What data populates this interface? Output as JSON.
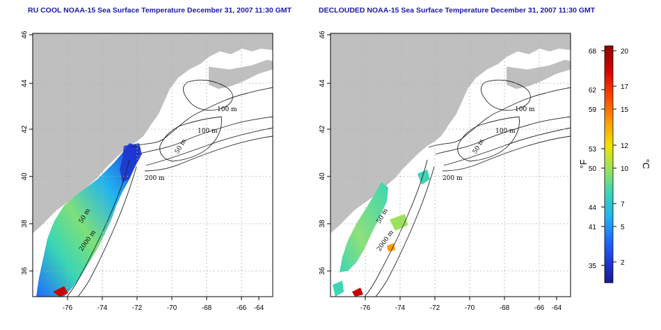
{
  "panels": [
    {
      "id": "left",
      "title": "RU COOL NOAA-15 Sea Surface Temperature December 31, 2007 11:30 GMT"
    },
    {
      "id": "right",
      "title": "DECLOUDED NOAA-15 Sea Surface Temperature December 31, 2007 11:30 GMT"
    }
  ],
  "axes": {
    "lon_ticks": [
      "-76",
      "-74",
      "-72",
      "-70",
      "-68",
      "-66",
      "-64"
    ],
    "lat_ticks": [
      "36",
      "38",
      "40",
      "42",
      "44",
      "46"
    ]
  },
  "contour_labels": {
    "left": [
      "100 m",
      "100 m",
      "50 m",
      "200 m",
      "50 m",
      "2000 m"
    ],
    "right": [
      "100 m",
      "100 m",
      "50 m",
      "200 m",
      "50 m",
      "2000 m"
    ]
  },
  "colorbar": {
    "fahrenheit_label": "°F",
    "celsius_label": "°C",
    "fahrenheit_ticks": [
      "68",
      "62",
      "59",
      "53",
      "50",
      "44",
      "41",
      "35"
    ],
    "celsius_ticks": [
      "20",
      "17",
      "15",
      "12",
      "10",
      "7",
      "5",
      "2"
    ],
    "colors": [
      "#8b0000",
      "#d40000",
      "#ff3a00",
      "#ff9a00",
      "#f2e800",
      "#7ee05a",
      "#28d6c8",
      "#1e8cff",
      "#1f3fd9",
      "#1a1a8f"
    ]
  },
  "colors": {
    "land": "#bfbfbf",
    "grid": "#b0b0b0",
    "title": "#1a1aa6"
  }
}
